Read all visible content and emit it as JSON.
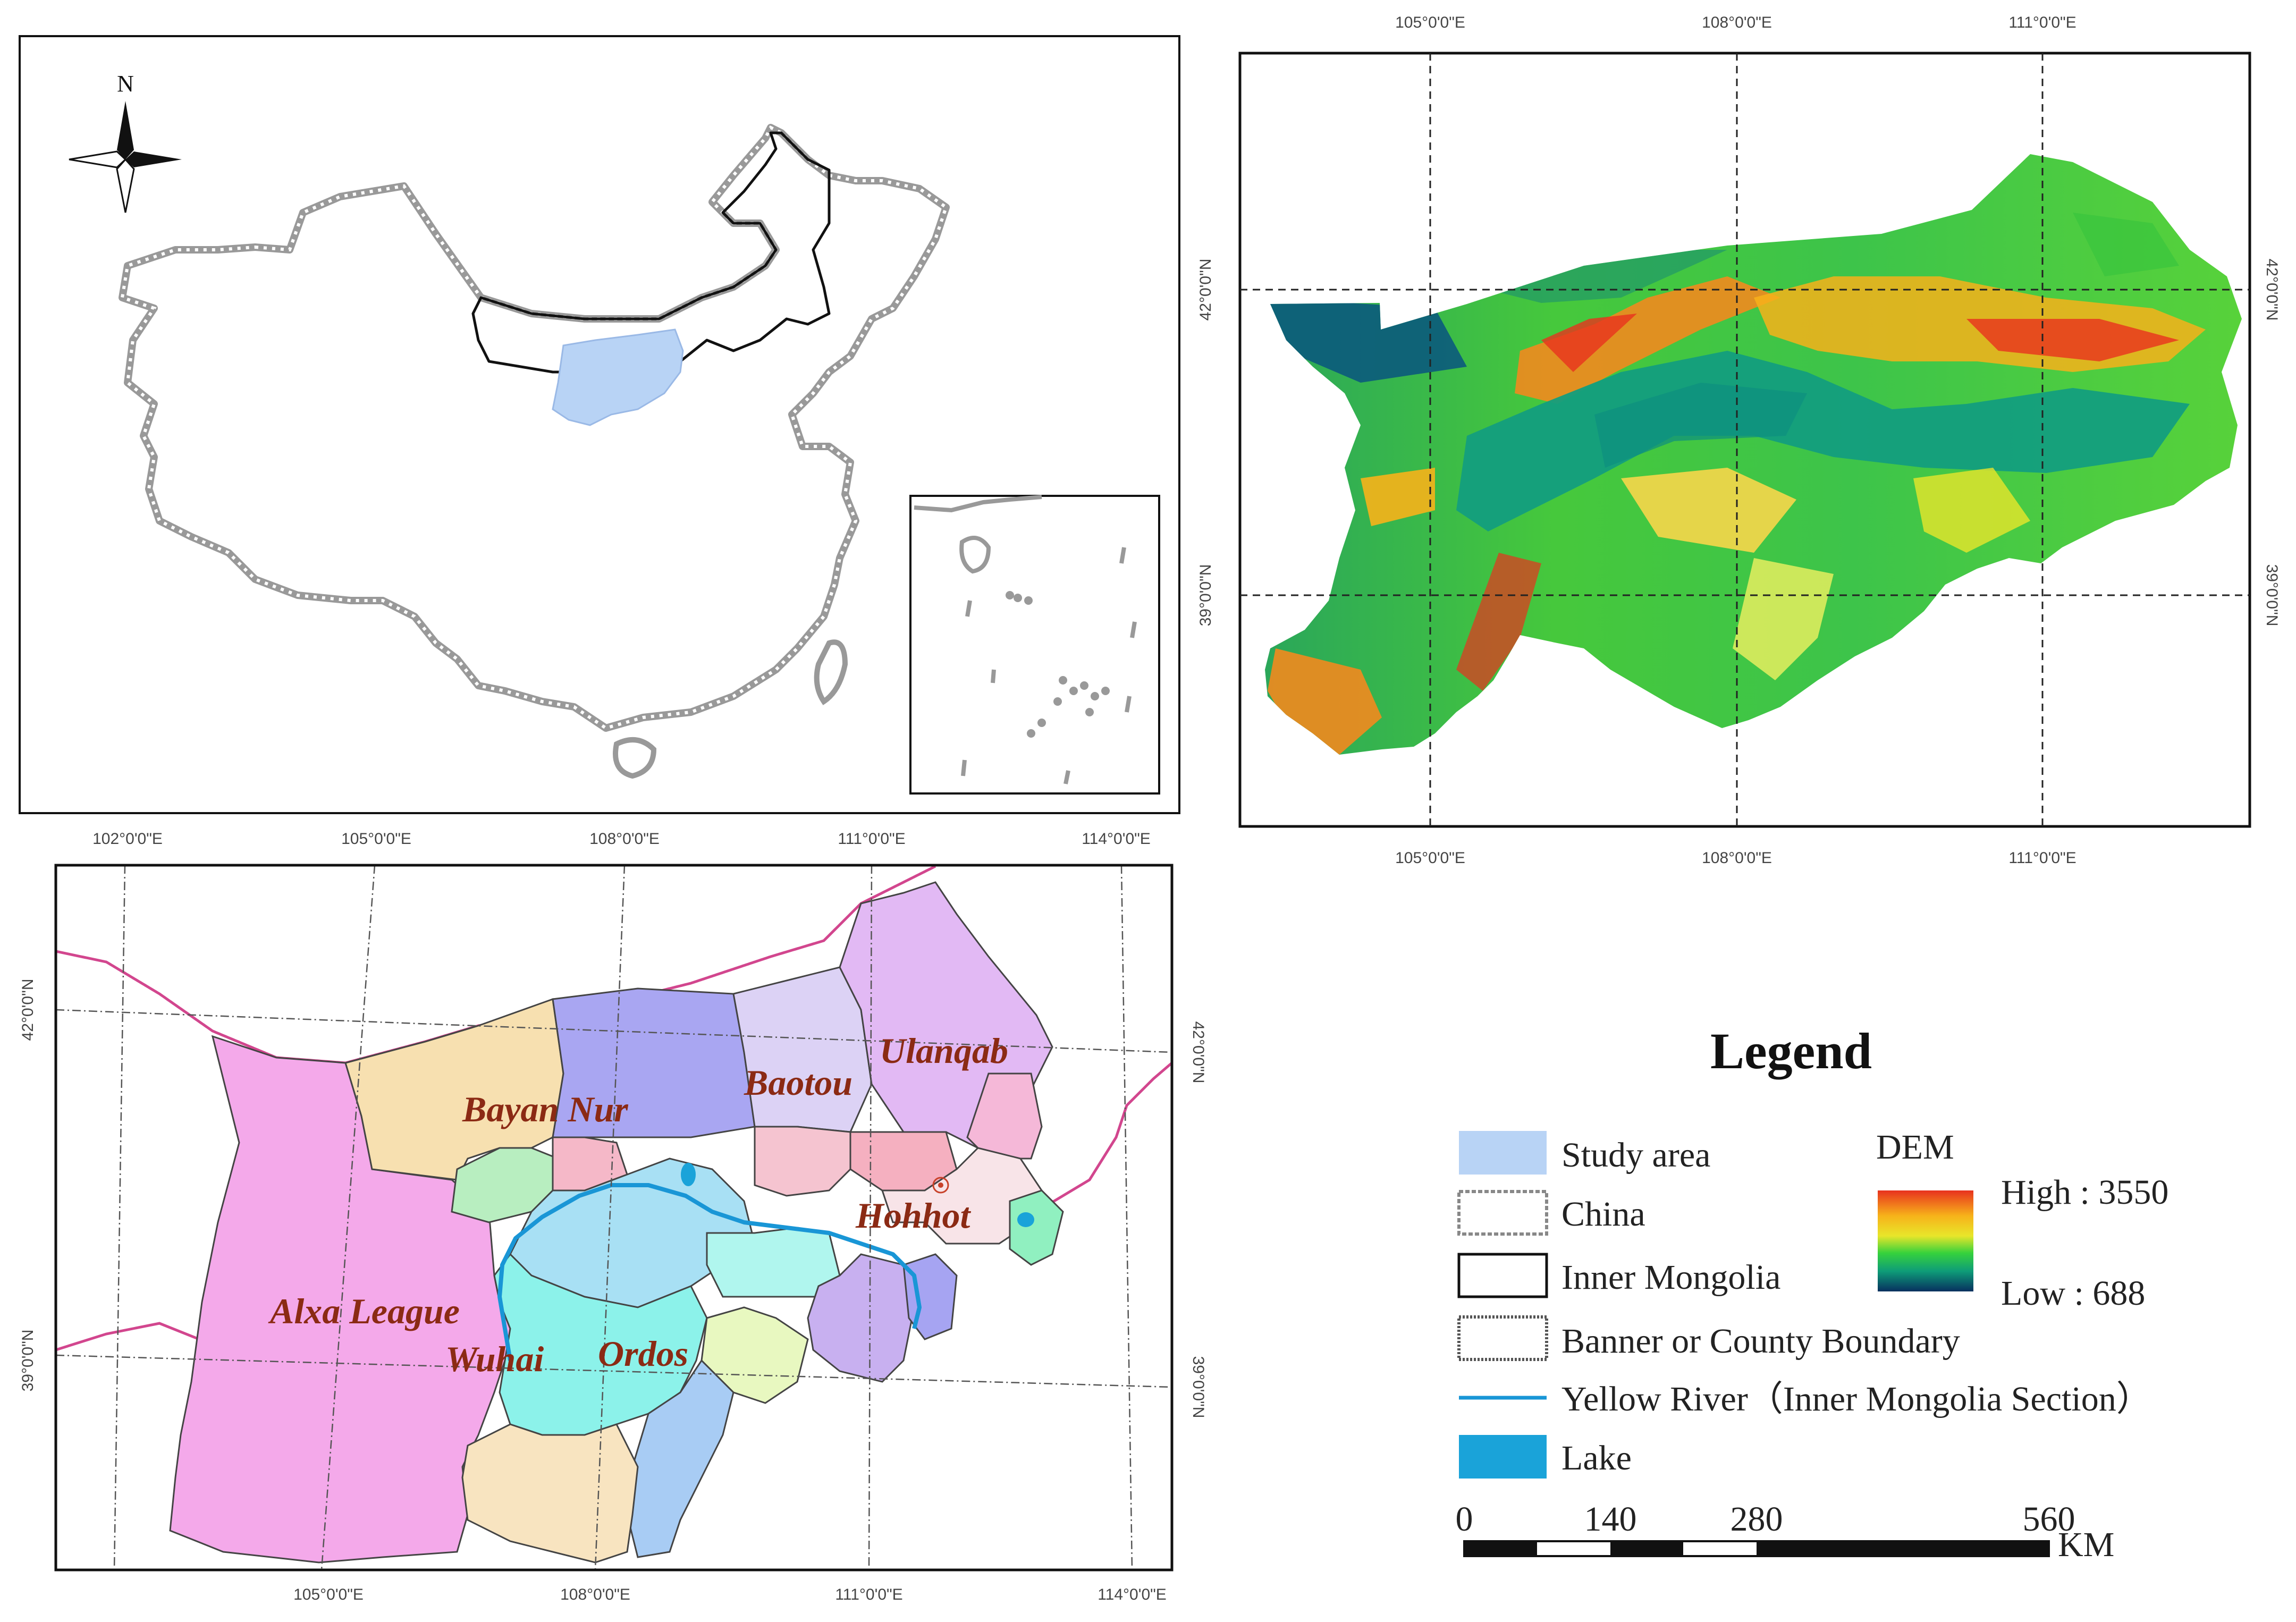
{
  "north_arrow": {
    "label": "N"
  },
  "panel_dem": {
    "top_ticks": [
      "105°0'0\"E",
      "108°0'0\"E",
      "111°0'0\"E"
    ],
    "bottom_ticks": [
      "105°0'0\"E",
      "108°0'0\"E",
      "111°0'0\"E"
    ],
    "left_ticks": [
      "42°0'0\"N",
      "39°0'0\"N"
    ],
    "right_ticks": [
      "42°0'0\"N",
      "39°0'0\"N"
    ]
  },
  "panel_admin": {
    "top_ticks": [
      "102°0'0\"E",
      "105°0'0\"E",
      "108°0'0\"E",
      "111°0'0\"E",
      "114°0'0\"E"
    ],
    "bottom_ticks": [
      "105°0'0\"E",
      "108°0'0\"E",
      "111°0'0\"E",
      "114°0'0\"E"
    ],
    "left_ticks": [
      "42°0'0\"N",
      "39°0'0\"N"
    ],
    "right_ticks": [
      "42°0'0\"N",
      "39°0'0\"N"
    ],
    "regions": {
      "alxa": "Alxa League",
      "bayan_nur": "Bayan Nur",
      "baotou": "Baotou",
      "ulanqab": "Ulanqab",
      "hohhot": "Hohhot",
      "wuhai": "Wuhai",
      "ordos": "Ordos"
    }
  },
  "legend": {
    "title": "Legend",
    "study_area": "Study area",
    "china": "China",
    "inner_mongolia": "Inner Mongolia",
    "banner": "Banner or County Boundary",
    "river": "Yellow River（Inner Mongolia Section）",
    "lake": "Lake",
    "dem_title": "DEM",
    "dem_high": "High : 3550",
    "dem_low": "Low : 688",
    "scale_ticks": [
      "0",
      "140",
      "280",
      "560"
    ],
    "scale_unit": "KM"
  },
  "colors": {
    "study_area": "#b8d3f5",
    "lake": "#1aa3d9",
    "river": "#1996d6",
    "alxa": "#f4a9ea",
    "bayan_nur": "#f7e0b0",
    "baotou": "#a9a6f2",
    "ulanqab": "#e2b9f4",
    "ordos": "#8cf2ea",
    "label": "#8b2a14"
  }
}
